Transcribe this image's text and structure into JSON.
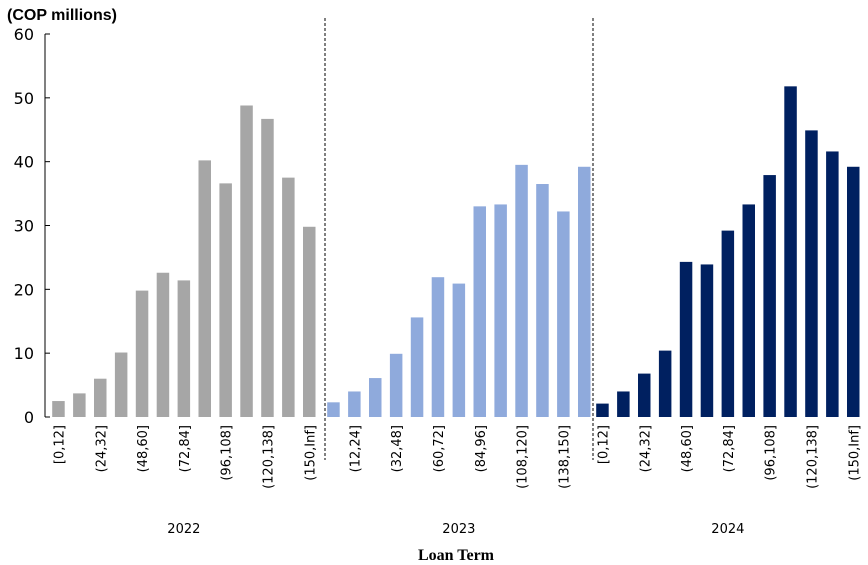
{
  "chart_data": {
    "type": "bar",
    "unit_label": "(COP millions)",
    "xlabel": "Loan Term",
    "ylabel": "",
    "ylim": [
      0,
      60
    ],
    "yticks": [
      0,
      10,
      20,
      30,
      40,
      50,
      60
    ],
    "groups": [
      {
        "name": "2022",
        "color": "#a6a6a6",
        "tick_labels": [
          "[0,12]",
          "(24,32]",
          "(48,60]",
          "(72,84]",
          "(96,108]",
          "(120,138]",
          "(150,Inf]"
        ],
        "values": [
          2.5,
          3.7,
          6.0,
          10.1,
          19.8,
          22.6,
          21.4,
          40.2,
          36.6,
          48.8,
          46.7,
          37.5,
          29.8
        ]
      },
      {
        "name": "2023",
        "color": "#8faadc",
        "tick_labels": [
          "(12,24]",
          "(32,48]",
          "(60,72]",
          "(84,96]",
          "(108,120]",
          "(138,150]"
        ],
        "values": [
          2.3,
          4.0,
          6.1,
          9.9,
          15.6,
          21.9,
          20.9,
          33.0,
          33.3,
          39.5,
          36.5,
          32.2,
          39.2
        ]
      },
      {
        "name": "2024",
        "color": "#002060",
        "tick_labels": [
          "[0,12]",
          "(24,32]",
          "(48,60]",
          "(72,84]",
          "(96,108]",
          "(120,138]",
          "(150,Inf]"
        ],
        "values": [
          2.1,
          4.0,
          6.8,
          10.4,
          24.3,
          23.9,
          29.2,
          33.3,
          37.9,
          51.8,
          44.9,
          41.6,
          39.2
        ]
      }
    ],
    "separators": "dashed vertical lines between years",
    "grid": false
  }
}
